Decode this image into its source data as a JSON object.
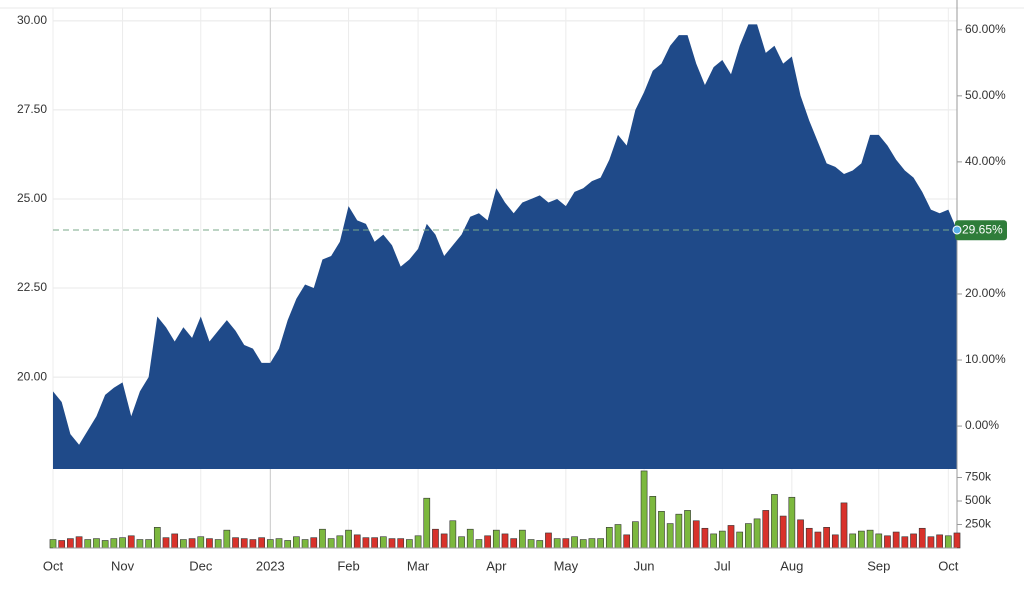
{
  "chart_data": {
    "type": "area",
    "color": "#1f4a89",
    "categories": [
      "Oct",
      null,
      null,
      null,
      null,
      null,
      null,
      null,
      "Nov",
      null,
      null,
      null,
      null,
      null,
      null,
      null,
      null,
      "Dec",
      null,
      null,
      null,
      null,
      null,
      null,
      null,
      "2023",
      null,
      null,
      null,
      null,
      null,
      null,
      null,
      null,
      "Feb",
      null,
      null,
      null,
      null,
      null,
      null,
      null,
      "Mar",
      null,
      null,
      null,
      null,
      null,
      null,
      null,
      null,
      "Apr",
      null,
      null,
      null,
      null,
      null,
      null,
      null,
      "May",
      null,
      null,
      null,
      null,
      null,
      null,
      null,
      null,
      "Jun",
      null,
      null,
      null,
      null,
      null,
      null,
      null,
      null,
      "Jul",
      null,
      null,
      null,
      null,
      null,
      null,
      null,
      "Aug",
      null,
      null,
      null,
      null,
      null,
      null,
      null,
      null,
      null,
      "Sep",
      null,
      null,
      null,
      null,
      null,
      null,
      null,
      "Oct",
      null
    ],
    "values": [
      19.6,
      19.3,
      18.4,
      18.1,
      18.5,
      18.9,
      19.5,
      19.7,
      19.85,
      18.9,
      19.6,
      20.0,
      21.7,
      21.4,
      21.0,
      21.4,
      21.1,
      21.7,
      21.0,
      21.3,
      21.6,
      21.3,
      20.9,
      20.8,
      20.4,
      20.4,
      20.8,
      21.6,
      22.2,
      22.6,
      22.5,
      23.3,
      23.4,
      23.8,
      24.8,
      24.4,
      24.3,
      23.8,
      24.0,
      23.7,
      23.1,
      23.3,
      23.6,
      24.3,
      24.0,
      23.4,
      23.7,
      24.0,
      24.5,
      24.6,
      24.4,
      25.3,
      24.9,
      24.6,
      24.9,
      25.0,
      25.1,
      24.9,
      25.0,
      24.8,
      25.2,
      25.3,
      25.5,
      25.6,
      26.1,
      26.8,
      26.5,
      27.5,
      28.0,
      28.6,
      28.8,
      29.3,
      29.6,
      29.6,
      28.8,
      28.2,
      28.7,
      28.9,
      28.5,
      29.3,
      29.9,
      29.9,
      29.1,
      29.3,
      28.8,
      29.0,
      27.9,
      27.2,
      26.6,
      26.0,
      25.9,
      25.7,
      25.8,
      26.0,
      26.8,
      26.8,
      26.5,
      26.1,
      25.8,
      25.6,
      25.2,
      24.7,
      24.6,
      24.7,
      24.13
    ],
    "ylim": [
      17.42,
      30.36
    ],
    "yticks": [
      {
        "value": 20,
        "label": "20.00"
      },
      {
        "value": 22.5,
        "label": "22.50"
      },
      {
        "value": 25,
        "label": "25.00"
      },
      {
        "value": 27.5,
        "label": "27.50"
      },
      {
        "value": 30,
        "label": "30.00"
      }
    ],
    "y2lim": [
      -6.5,
      63.3
    ],
    "y2ticks": [
      {
        "value": 0,
        "label": "0.00%"
      },
      {
        "value": 10,
        "label": "10.00%"
      },
      {
        "value": 20,
        "label": "20.00%"
      },
      {
        "value": 30,
        "label": "30.00%"
      },
      {
        "value": 40,
        "label": "40.00%"
      },
      {
        "value": 50,
        "label": "50.00%"
      },
      {
        "value": 60,
        "label": "60.00%"
      }
    ],
    "last_change": {
      "value": 29.65,
      "label": "29.65%"
    },
    "grid": true,
    "volume": {
      "up_color": "#7cb83e",
      "down_color": "#d8322b",
      "values": [
        90000,
        80000,
        100000,
        120000,
        90000,
        100000,
        80000,
        100000,
        110000,
        130000,
        90000,
        90000,
        220000,
        110000,
        150000,
        90000,
        100000,
        120000,
        100000,
        90000,
        190000,
        110000,
        100000,
        90000,
        110000,
        90000,
        100000,
        80000,
        120000,
        90000,
        110000,
        200000,
        100000,
        130000,
        190000,
        140000,
        110000,
        110000,
        120000,
        100000,
        100000,
        90000,
        130000,
        530000,
        200000,
        150000,
        290000,
        120000,
        200000,
        90000,
        130000,
        190000,
        150000,
        100000,
        190000,
        90000,
        80000,
        160000,
        100000,
        100000,
        120000,
        90000,
        100000,
        100000,
        220000,
        250000,
        140000,
        280000,
        820000,
        550000,
        390000,
        260000,
        360000,
        400000,
        290000,
        210000,
        150000,
        180000,
        240000,
        170000,
        260000,
        310000,
        400000,
        570000,
        340000,
        540000,
        300000,
        210000,
        170000,
        220000,
        140000,
        480000,
        150000,
        180000,
        190000,
        150000,
        130000,
        170000,
        120000,
        150000,
        210000,
        120000,
        140000,
        130000,
        160000
      ],
      "ylim": [
        0,
        830000
      ],
      "yticks": [
        {
          "value": 250000,
          "label": "250k"
        },
        {
          "value": 500000,
          "label": "500k"
        },
        {
          "value": 750000,
          "label": "750k"
        }
      ]
    }
  }
}
